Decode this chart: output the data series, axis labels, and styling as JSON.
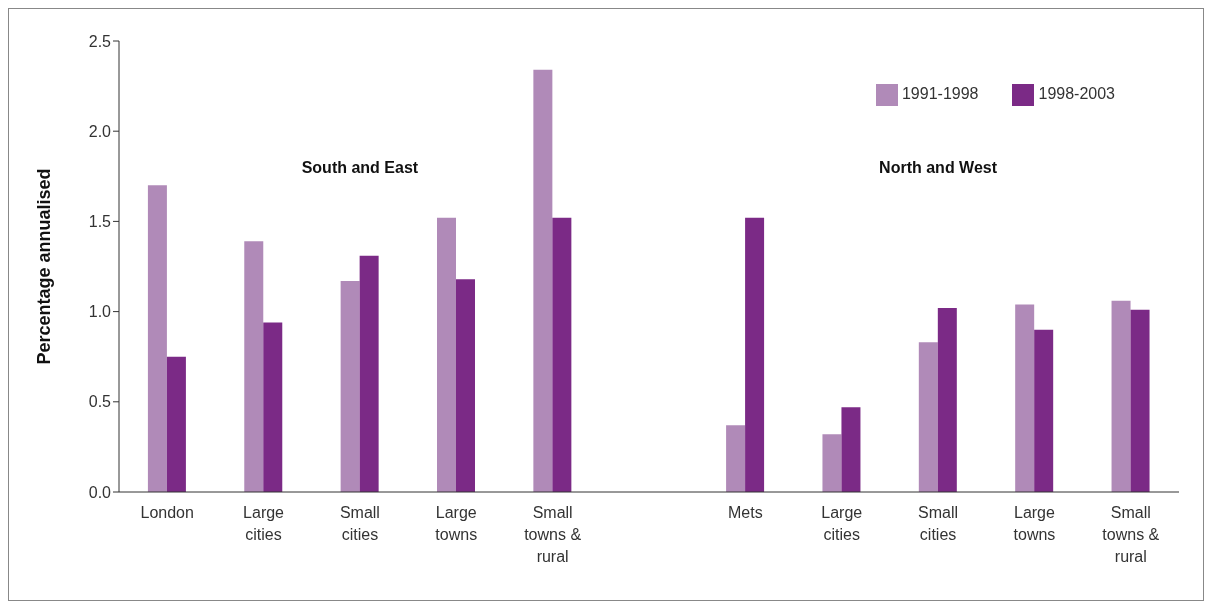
{
  "chart_data": {
    "type": "bar",
    "ylabel": "Percentage annualised",
    "categories": [
      "London",
      "Large cities",
      "Small cities",
      "Large towns",
      "Small towns & rural",
      null,
      "Mets",
      "Large cities",
      "Small cities",
      "Large towns",
      "Small towns & rural"
    ],
    "series": [
      {
        "name": "1991-1998",
        "color": "#b08ab8",
        "values": [
          1.7,
          1.39,
          1.17,
          1.52,
          2.34,
          null,
          0.37,
          0.32,
          0.83,
          1.04,
          1.06
        ]
      },
      {
        "name": "1998-2003",
        "color": "#7b2a86",
        "values": [
          0.75,
          0.94,
          1.31,
          1.18,
          1.52,
          null,
          1.52,
          0.47,
          1.02,
          0.9,
          1.01
        ]
      }
    ],
    "ylim": [
      0,
      2.5
    ],
    "yticks": [
      {
        "value": 0,
        "label": "0.0"
      },
      {
        "value": 0.5,
        "label": "0.5"
      },
      {
        "value": 1,
        "label": "1.0"
      },
      {
        "value": 1.5,
        "label": "1.5"
      },
      {
        "value": 2,
        "label": "2.0"
      },
      {
        "value": 2.5,
        "label": "2.5"
      }
    ],
    "annotations": [
      "South and East",
      "North and West"
    ],
    "grid": false,
    "legend": "top right"
  }
}
